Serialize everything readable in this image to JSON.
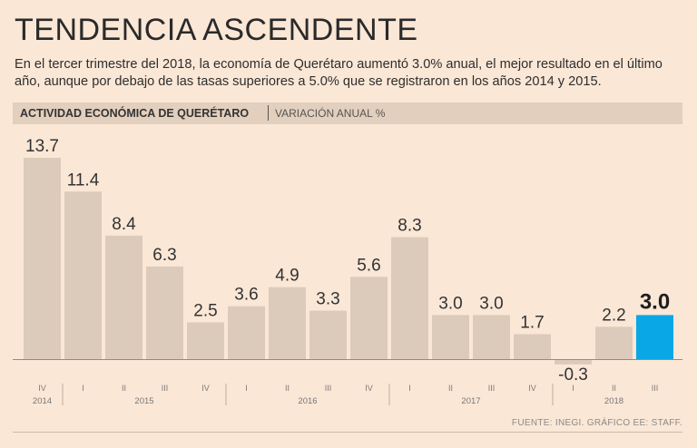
{
  "header": {
    "title": "TENDENCIA ASCENDENTE",
    "subtitle": "En el tercer trimestre del 2018, la economía de Querétaro aumentó 3.0% anual, el mejor resultado en el último año, aunque por debajo de las tasas superiores a 5.0% que se registraron en los años 2014 y 2015."
  },
  "band": {
    "main": "ACTIVIDAD ECONÓMICA DE QUERÉTARO",
    "sub": "VARIACIÓN ANUAL %"
  },
  "footer": {
    "source": "FUENTE: INEGI. GRÁFICO EE: STAFF."
  },
  "colors": {
    "bar": "#dccbbb",
    "highlight": "#0aa7e6",
    "axis": "#8d8d8d"
  },
  "chart_data": {
    "type": "bar",
    "title": "ACTIVIDAD ECONÓMICA DE QUERÉTARO",
    "ylabel": "VARIACIÓN ANUAL %",
    "ylim": [
      -0.3,
      13.7
    ],
    "categories": [
      "IV",
      "I",
      "II",
      "III",
      "IV",
      "I",
      "II",
      "III",
      "IV",
      "I",
      "II",
      "III",
      "IV",
      "I",
      "II",
      "III"
    ],
    "labels": [
      "13.7",
      "11.4",
      "8.4",
      "6.3",
      "2.5",
      "3.6",
      "4.9",
      "3.3",
      "5.6",
      "8.3",
      "3.0",
      "3.0",
      "1.7",
      "-0.3",
      "2.2",
      "3.0"
    ],
    "values": [
      13.7,
      11.4,
      8.4,
      6.3,
      2.5,
      3.6,
      4.9,
      3.3,
      5.6,
      8.3,
      3.0,
      3.0,
      1.7,
      -0.3,
      2.2,
      3.0
    ],
    "highlight_index": 15,
    "years": [
      {
        "label": "2014",
        "start": 0,
        "end": 0
      },
      {
        "label": "2015",
        "start": 1,
        "end": 4
      },
      {
        "label": "2016",
        "start": 5,
        "end": 8
      },
      {
        "label": "2017",
        "start": 9,
        "end": 12
      },
      {
        "label": "2018",
        "start": 13,
        "end": 15
      }
    ]
  }
}
